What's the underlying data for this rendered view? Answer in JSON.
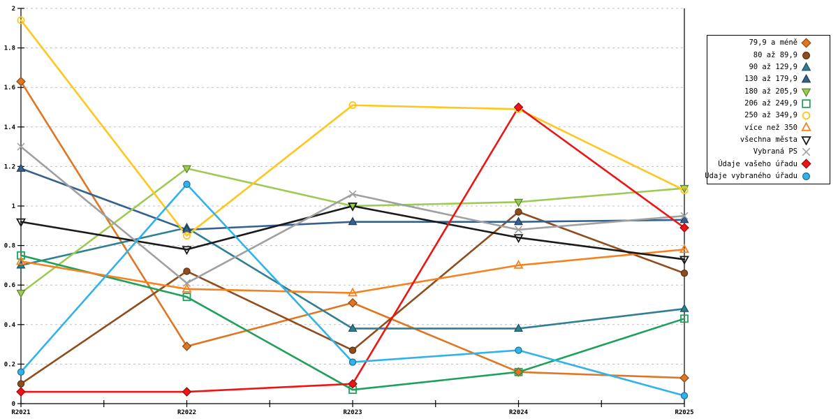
{
  "chart_data": {
    "type": "line",
    "title": "",
    "xlabel": "",
    "ylabel": "",
    "grid": "horizontal-dashed",
    "legend_position": "right-top",
    "x_categories": [
      "R2021",
      "R2022",
      "R2023",
      "R2024",
      "R2025"
    ],
    "y_axis": {
      "min": 0,
      "max": 2,
      "step": 0.2,
      "tick_labels": [
        "0",
        "0.2",
        "0.4",
        "0.6",
        "0.8",
        "1",
        "1.2",
        "1.4",
        "1.6",
        "1.8",
        "2"
      ]
    },
    "series": [
      {
        "name": "79,9 a méně",
        "color": "#E07622",
        "marker": "diamond",
        "filled": true,
        "values": [
          1.63,
          0.29,
          0.51,
          0.16,
          0.13
        ]
      },
      {
        "name": "80 až 89,9",
        "color": "#8F4D1E",
        "marker": "circle",
        "filled": true,
        "values": [
          0.1,
          0.67,
          0.27,
          0.97,
          0.66
        ]
      },
      {
        "name": "90 až 129,9",
        "color": "#2F7F93",
        "marker": "triangle-up",
        "filled": true,
        "values": [
          0.7,
          0.89,
          0.38,
          0.38,
          0.48
        ]
      },
      {
        "name": "130 až 179,9",
        "color": "#35618F",
        "marker": "triangle-up",
        "filled": true,
        "values": [
          1.19,
          0.88,
          0.92,
          0.92,
          0.93
        ]
      },
      {
        "name": "180 až 205,9",
        "color": "#9CCB53",
        "marker": "triangle-down",
        "filled": true,
        "marker_border": "#55842B",
        "values": [
          0.56,
          1.19,
          1.0,
          1.02,
          1.09
        ]
      },
      {
        "name": "206 až 249,9",
        "color": "#1FA05A",
        "marker": "square",
        "filled": false,
        "values": [
          0.75,
          0.54,
          0.07,
          0.16,
          0.43
        ]
      },
      {
        "name": "250 až 349,9",
        "color": "#FFC61E",
        "marker": "circle",
        "filled": false,
        "values": [
          1.94,
          0.85,
          1.51,
          1.49,
          1.08
        ]
      },
      {
        "name": "více než 350",
        "color": "#F58220",
        "marker": "triangle-up",
        "filled": false,
        "values": [
          0.72,
          0.58,
          0.56,
          0.7,
          0.78
        ]
      },
      {
        "name": "všechna města",
        "color": "#1A1A1A",
        "marker": "triangle-down",
        "filled": false,
        "values": [
          0.92,
          0.78,
          1.0,
          0.84,
          0.73
        ]
      },
      {
        "name": "Vybraná PS",
        "color": "#A0A0A0",
        "marker": "x",
        "filled": false,
        "values": [
          1.3,
          0.61,
          1.06,
          0.88,
          0.95
        ]
      },
      {
        "name": "Údaje vašeho úřadu",
        "color": "#EE1414",
        "marker": "diamond",
        "filled": true,
        "values": [
          0.06,
          0.06,
          0.1,
          1.5,
          0.89
        ]
      },
      {
        "name": "Údaje vybraného úřadu",
        "color": "#2FB3EA",
        "marker": "circle",
        "filled": true,
        "values": [
          0.16,
          1.11,
          0.21,
          0.27,
          0.04
        ]
      }
    ]
  },
  "style_colors": {
    "grid": "#BFBFBF",
    "axis": "#000000",
    "tick_text": "#000000",
    "background": "#FFFFFF",
    "legend_border": "#000000"
  }
}
